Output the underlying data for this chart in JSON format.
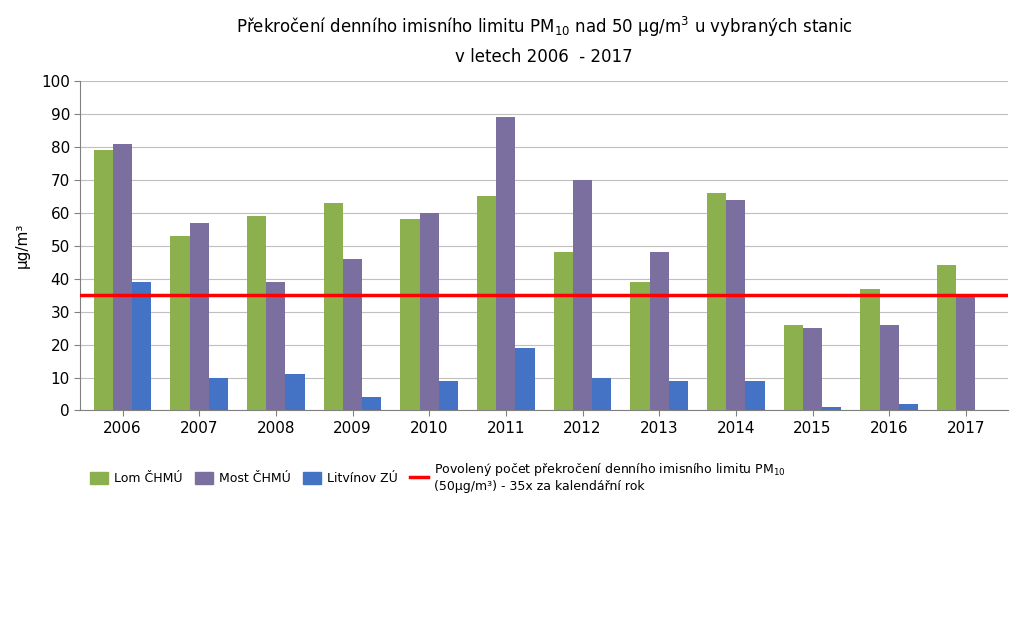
{
  "title_line1": "Překročení denního imisního limitu PM$_{10}$ nad 50 μg/m$^3$ u vybraných stanic",
  "title_line2": "v letech 2006  - 2017",
  "ylabel": "μg/m³",
  "years": [
    2006,
    2007,
    2008,
    2009,
    2010,
    2011,
    2012,
    2013,
    2014,
    2015,
    2016,
    2017
  ],
  "lom": [
    79,
    53,
    59,
    63,
    58,
    65,
    48,
    39,
    66,
    26,
    37,
    44
  ],
  "most": [
    81,
    57,
    39,
    46,
    60,
    89,
    70,
    48,
    64,
    25,
    26,
    35
  ],
  "litvinov": [
    39,
    10,
    11,
    4,
    9,
    19,
    10,
    9,
    9,
    1,
    2,
    null
  ],
  "lom_color": "#8DB04E",
  "most_color": "#7B6FA0",
  "litvinov_color": "#4472C4",
  "limit_value": 35,
  "limit_color": "#FF0000",
  "ylim": [
    0,
    100
  ],
  "yticks": [
    0,
    10,
    20,
    30,
    40,
    50,
    60,
    70,
    80,
    90,
    100
  ],
  "legend_lom": "Lom ČHMÚ",
  "legend_most": "Most ČHMÚ",
  "legend_litvinov": "Litvínov ZÚ",
  "legend_limit": "Povolený počet překročení denního imisního limitu PM$_{10}$\n(50μg/m³) - 35x za kalendářní rok",
  "background_color": "#FFFFFF",
  "grid_color": "#BFBFBF",
  "bar_width": 0.25,
  "title_fontsize": 12,
  "tick_fontsize": 11,
  "ylabel_fontsize": 11
}
